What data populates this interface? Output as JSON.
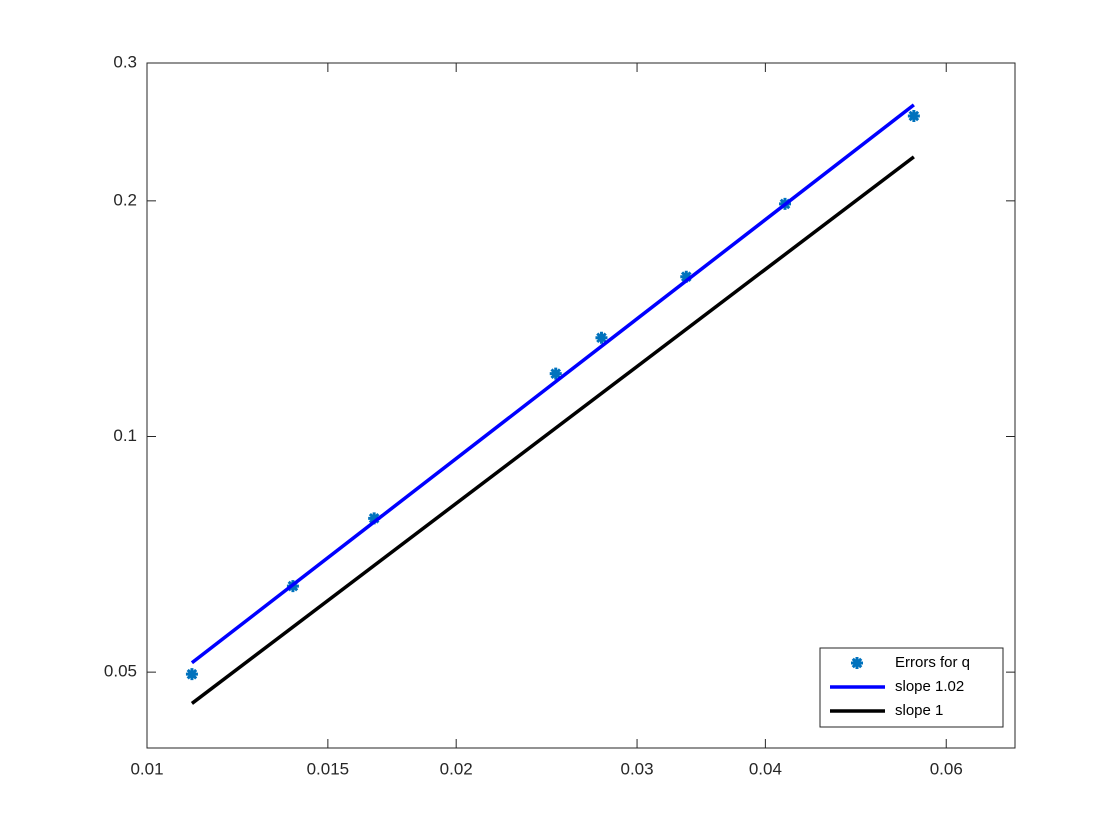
{
  "chart_data": {
    "type": "loglog",
    "xscale": "log",
    "yscale": "log",
    "xlim": [
      0.01,
      0.07
    ],
    "ylim": [
      0.04,
      0.3
    ],
    "xticks": [
      0.01,
      0.015,
      0.02,
      0.03,
      0.04,
      0.06
    ],
    "yticks": [
      0.05,
      0.1,
      0.2,
      0.3
    ],
    "grid": false,
    "legend_location": "southeast",
    "series": [
      {
        "name": "Errors for q",
        "style": "marker",
        "color": "#0072bd",
        "x": [
          0.01106,
          0.01387,
          0.01664,
          0.025,
          0.0277,
          0.0335,
          0.0418,
          0.0558
        ],
        "values": [
          0.0497,
          0.0644,
          0.0786,
          0.1203,
          0.1337,
          0.16,
          0.1982,
          0.2567
        ]
      },
      {
        "name": "slope 1.02",
        "style": "line",
        "color": "#0000ff",
        "x": [
          0.01106,
          0.0558
        ],
        "values": [
          0.0514,
          0.2652
        ]
      },
      {
        "name": "slope 1",
        "style": "line",
        "color": "#000000",
        "x": [
          0.01106,
          0.0558
        ],
        "values": [
          0.0456,
          0.2276
        ]
      }
    ]
  }
}
